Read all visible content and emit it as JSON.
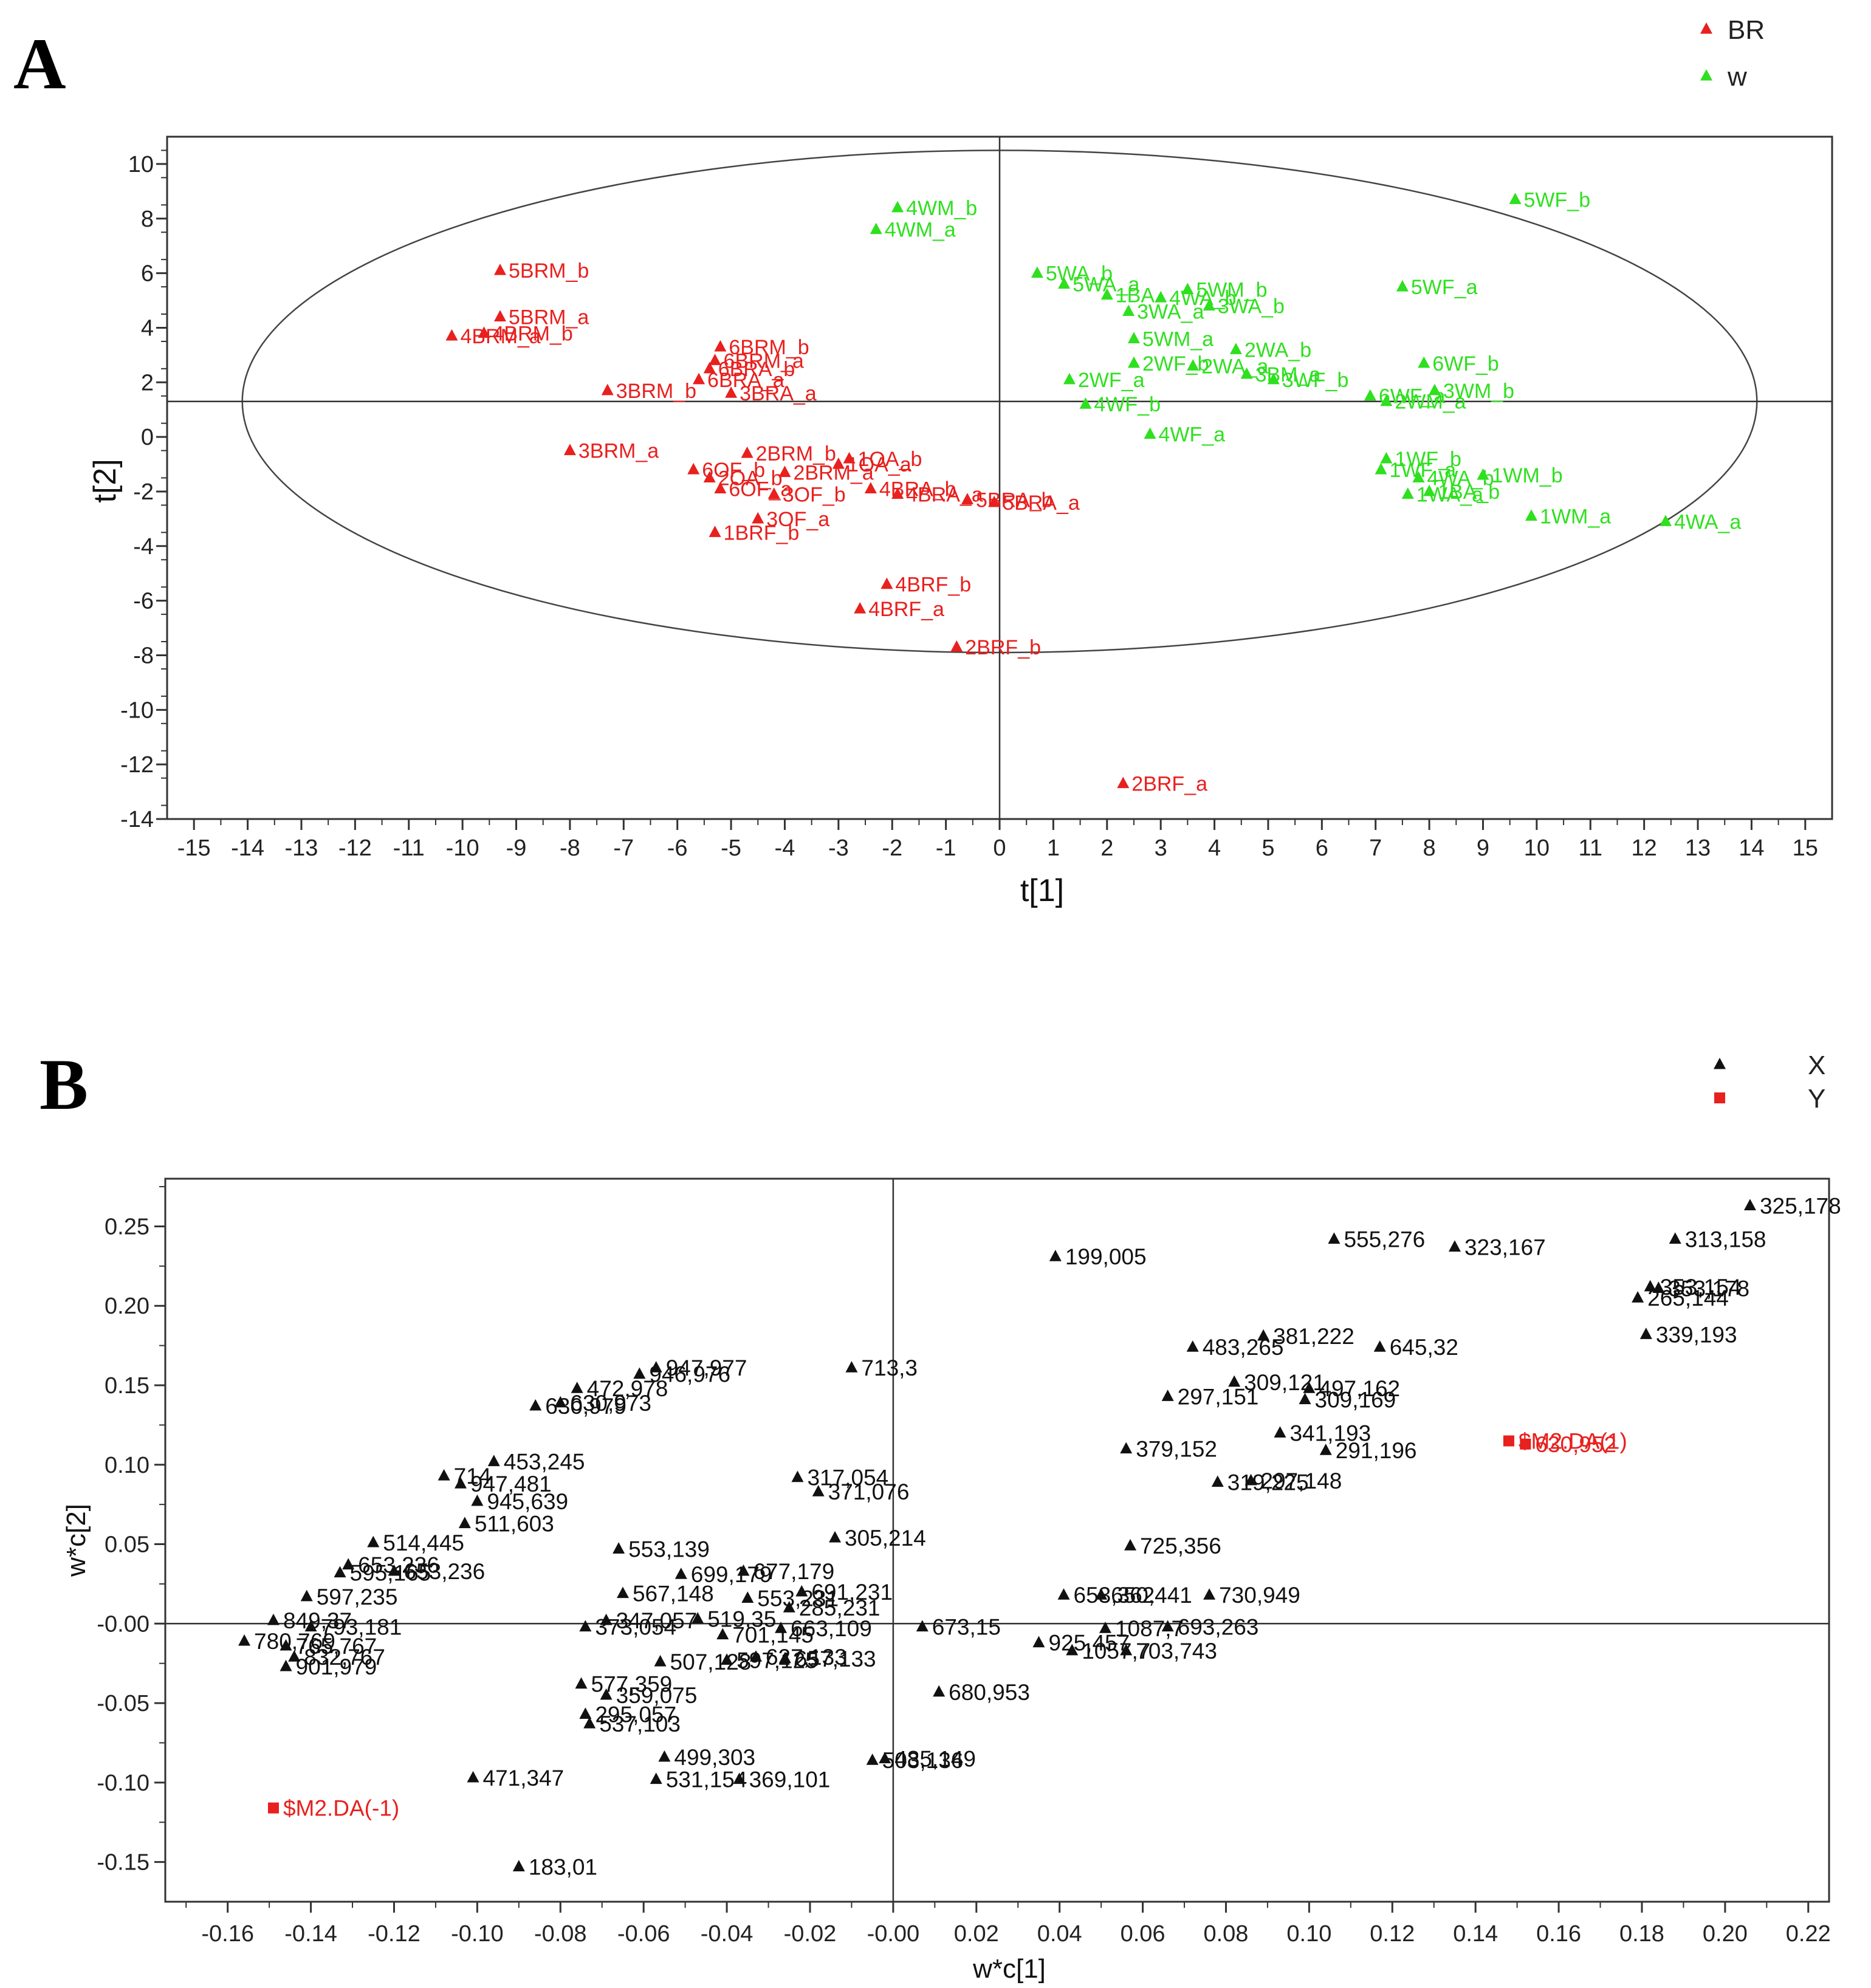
{
  "colors": {
    "br": "#e8201e",
    "w": "#2ee01e",
    "x": "#111111",
    "y": "#e8201e",
    "axis": "#333333"
  },
  "chart_data": [
    {
      "type": "scatter",
      "panel": "A",
      "xlabel": "t[1]",
      "ylabel": "t[2]",
      "xlim": [
        -15.5,
        15.5
      ],
      "ylim": [
        -14,
        11
      ],
      "xticks": [
        -15,
        -14,
        -13,
        -12,
        -11,
        -10,
        -9,
        -8,
        -7,
        -6,
        -5,
        -4,
        -3,
        -2,
        -1,
        0,
        1,
        2,
        3,
        4,
        5,
        6,
        7,
        8,
        9,
        10,
        11,
        12,
        13,
        14,
        15
      ],
      "yticks": [
        10,
        8,
        6,
        4,
        2,
        0,
        -2,
        -4,
        -6,
        -8,
        -10,
        -12,
        -14
      ],
      "ellipse": {
        "cx": 0,
        "cy": 1.3,
        "rx": 14.1,
        "ry": 9.2
      },
      "reference_lines": {
        "x": 0,
        "y": 1.3
      },
      "legend": [
        "BR",
        "w"
      ],
      "legend_position": "top-right",
      "series": [
        {
          "name": "BR",
          "color": "#e8201e",
          "points": [
            {
              "label": "5BRM_b",
              "x": -9.3,
              "y": 6.1
            },
            {
              "label": "5BRM_a",
              "x": -9.3,
              "y": 4.4
            },
            {
              "label": "4BRM_b",
              "x": -9.6,
              "y": 3.8
            },
            {
              "label": "4BRM_a",
              "x": -10.2,
              "y": 3.7
            },
            {
              "label": "3BRM_b",
              "x": -7.3,
              "y": 1.7
            },
            {
              "label": "3BRM_a",
              "x": -8.0,
              "y": -0.5
            },
            {
              "label": "6BRM_b",
              "x": -5.2,
              "y": 3.3
            },
            {
              "label": "6BRM_a",
              "x": -5.3,
              "y": 2.8
            },
            {
              "label": "6BRA_b",
              "x": -5.4,
              "y": 2.5
            },
            {
              "label": "6BRA_a",
              "x": -5.6,
              "y": 2.1
            },
            {
              "label": "3BRA_a",
              "x": -5.0,
              "y": 1.6
            },
            {
              "label": "2BRM_b",
              "x": -4.7,
              "y": -0.6
            },
            {
              "label": "2BRM_a",
              "x": -4.0,
              "y": -1.3
            },
            {
              "label": "1OA_b",
              "x": -2.8,
              "y": -0.8
            },
            {
              "label": "1OA_a",
              "x": -3.0,
              "y": -1.0
            },
            {
              "label": "6OF_b",
              "x": -5.7,
              "y": -1.2
            },
            {
              "label": "6OF_a",
              "x": -5.2,
              "y": -1.9
            },
            {
              "label": "2OA_b",
              "x": -5.4,
              "y": -1.5
            },
            {
              "label": "3OF_b",
              "x": -4.2,
              "y": -2.1
            },
            {
              "label": "3OF_a",
              "x": -4.5,
              "y": -3.0
            },
            {
              "label": "4BRA_b",
              "x": -2.4,
              "y": -1.9
            },
            {
              "label": "4BRA_a",
              "x": -1.9,
              "y": -2.1
            },
            {
              "label": "5BRA_b",
              "x": -0.6,
              "y": -2.3
            },
            {
              "label": "5BRA_a",
              "x": -0.1,
              "y": -2.4
            },
            {
              "label": "1BRF_b",
              "x": -5.3,
              "y": -3.5
            },
            {
              "label": "4BRF_b",
              "x": -2.1,
              "y": -5.4
            },
            {
              "label": "4BRF_a",
              "x": -2.6,
              "y": -6.3
            },
            {
              "label": "2BRF_b",
              "x": -0.8,
              "y": -7.7
            },
            {
              "label": "2BRF_a",
              "x": 2.3,
              "y": -12.7
            }
          ]
        },
        {
          "name": "w",
          "color": "#2ee01e",
          "points": [
            {
              "label": "4WM_b",
              "x": -1.9,
              "y": 8.4
            },
            {
              "label": "4WM_a",
              "x": -2.3,
              "y": 7.6
            },
            {
              "label": "5WF_b",
              "x": 9.6,
              "y": 8.7
            },
            {
              "label": "5WF_a",
              "x": 7.5,
              "y": 5.5
            },
            {
              "label": "5WA_b",
              "x": 0.7,
              "y": 6.0
            },
            {
              "label": "5WA_a",
              "x": 1.2,
              "y": 5.6
            },
            {
              "label": "1BA",
              "x": 2.0,
              "y": 5.2
            },
            {
              "label": "3WA_a",
              "x": 2.4,
              "y": 4.6
            },
            {
              "label": "4WA_b",
              "x": 3.0,
              "y": 5.1
            },
            {
              "label": "5WM_b",
              "x": 3.5,
              "y": 5.4
            },
            {
              "label": "5WM_a",
              "x": 2.5,
              "y": 3.6
            },
            {
              "label": "3WA_b",
              "x": 3.9,
              "y": 4.8
            },
            {
              "label": "2WA_b",
              "x": 4.4,
              "y": 3.2
            },
            {
              "label": "2WF_a",
              "x": 1.3,
              "y": 2.1
            },
            {
              "label": "2WF_b",
              "x": 2.5,
              "y": 2.7
            },
            {
              "label": "4WF_b",
              "x": 1.6,
              "y": 1.2
            },
            {
              "label": "4WF_a",
              "x": 2.8,
              "y": 0.1
            },
            {
              "label": "2WA_a",
              "x": 3.6,
              "y": 2.6
            },
            {
              "label": "3BM_a",
              "x": 4.6,
              "y": 2.3
            },
            {
              "label": "3WF_b",
              "x": 5.1,
              "y": 2.1
            },
            {
              "label": "6WF_b",
              "x": 7.9,
              "y": 2.7
            },
            {
              "label": "6WF_a",
              "x": 6.9,
              "y": 1.5
            },
            {
              "label": "3WM_b",
              "x": 8.1,
              "y": 1.7
            },
            {
              "label": "2WM_a",
              "x": 7.2,
              "y": 1.3
            },
            {
              "label": "1WF_b",
              "x": 7.2,
              "y": -0.8
            },
            {
              "label": "1WF_a",
              "x": 7.1,
              "y": -1.2
            },
            {
              "label": "4WA_b",
              "x": 7.8,
              "y": -1.5
            },
            {
              "label": "1WM_b",
              "x": 9.0,
              "y": -1.4
            },
            {
              "label": "1BA_b",
              "x": 8.0,
              "y": -2.0
            },
            {
              "label": "1WA_a",
              "x": 7.6,
              "y": -2.1
            },
            {
              "label": "1WM_a",
              "x": 9.9,
              "y": -2.9
            },
            {
              "label": "4WA_a",
              "x": 12.4,
              "y": -3.1
            }
          ]
        }
      ]
    },
    {
      "type": "scatter",
      "panel": "B",
      "xlabel": "w*c[1]",
      "ylabel": "w*c[2]",
      "xlim": [
        -0.175,
        0.225
      ],
      "ylim": [
        -0.175,
        0.28
      ],
      "xticks": [
        "-0.16",
        "-0.14",
        "-0.12",
        "-0.10",
        "-0.08",
        "-0.06",
        "-0.04",
        "-0.02",
        "-0.00",
        "0.02",
        "0.04",
        "0.06",
        "0.08",
        "0.10",
        "0.12",
        "0.14",
        "0.16",
        "0.18",
        "0.20",
        "0.22"
      ],
      "yticks": [
        "0.25",
        "0.20",
        "0.15",
        "0.10",
        "0.05",
        "-0.00",
        "-0.05",
        "-0.10",
        "-0.15"
      ],
      "reference_lines": {
        "x": 0,
        "y": 0
      },
      "legend": [
        "X",
        "Y"
      ],
      "legend_position": "top-right",
      "series": [
        {
          "name": "X",
          "color": "#111111",
          "points": [
            {
              "label": "325,178",
              "x": 0.206,
              "y": 0.263
            },
            {
              "label": "313,158",
              "x": 0.188,
              "y": 0.242
            },
            {
              "label": "353,154",
              "x": 0.182,
              "y": 0.212
            },
            {
              "label": "353,178",
              "x": 0.184,
              "y": 0.211
            },
            {
              "label": "265,144",
              "x": 0.179,
              "y": 0.205
            },
            {
              "label": "339,193",
              "x": 0.181,
              "y": 0.182
            },
            {
              "label": "555,276",
              "x": 0.106,
              "y": 0.242
            },
            {
              "label": "323,167",
              "x": 0.135,
              "y": 0.237
            },
            {
              "label": "199,005",
              "x": 0.039,
              "y": 0.231
            },
            {
              "label": "381,222",
              "x": 0.089,
              "y": 0.181
            },
            {
              "label": "483,265",
              "x": 0.072,
              "y": 0.174
            },
            {
              "label": "645,32",
              "x": 0.117,
              "y": 0.174
            },
            {
              "label": "309,121",
              "x": 0.082,
              "y": 0.152
            },
            {
              "label": "297,151",
              "x": 0.066,
              "y": 0.143
            },
            {
              "label": "497,162",
              "x": 0.1,
              "y": 0.148
            },
            {
              "label": "309,169",
              "x": 0.099,
              "y": 0.141
            },
            {
              "label": "341,193",
              "x": 0.093,
              "y": 0.12
            },
            {
              "label": "379,152",
              "x": 0.056,
              "y": 0.11
            },
            {
              "label": "291,196",
              "x": 0.104,
              "y": 0.109
            },
            {
              "label": "319,225",
              "x": 0.078,
              "y": 0.089
            },
            {
              "label": "297,148",
              "x": 0.086,
              "y": 0.09
            },
            {
              "label": "725,356",
              "x": 0.057,
              "y": 0.049
            },
            {
              "label": "653,362",
              "x": 0.041,
              "y": 0.018
            },
            {
              "label": "650,441",
              "x": 0.05,
              "y": 0.018
            },
            {
              "label": "730,949",
              "x": 0.076,
              "y": 0.018
            },
            {
              "label": "925,457",
              "x": 0.035,
              "y": -0.012
            },
            {
              "label": "1087,7",
              "x": 0.051,
              "y": -0.003
            },
            {
              "label": "1057,7",
              "x": 0.043,
              "y": -0.017
            },
            {
              "label": "693,263",
              "x": 0.066,
              "y": -0.002
            },
            {
              "label": "703,743",
              "x": 0.056,
              "y": -0.017
            },
            {
              "label": "673,15",
              "x": 0.007,
              "y": -0.002
            },
            {
              "label": "680,953",
              "x": 0.011,
              "y": -0.043
            },
            {
              "label": "713,3",
              "x": -0.01,
              "y": 0.161
            },
            {
              "label": "947,977",
              "x": -0.057,
              "y": 0.161
            },
            {
              "label": "946,976",
              "x": -0.061,
              "y": 0.157
            },
            {
              "label": "472,978",
              "x": -0.076,
              "y": 0.148
            },
            {
              "label": "630,973",
              "x": -0.08,
              "y": 0.139
            },
            {
              "label": "630,979",
              "x": -0.086,
              "y": 0.137
            },
            {
              "label": "317,054",
              "x": -0.023,
              "y": 0.092
            },
            {
              "label": "371,076",
              "x": -0.018,
              "y": 0.083
            },
            {
              "label": "305,214",
              "x": -0.014,
              "y": 0.054
            },
            {
              "label": "553,139",
              "x": -0.066,
              "y": 0.047
            },
            {
              "label": "567,148",
              "x": -0.065,
              "y": 0.019
            },
            {
              "label": "699,179",
              "x": -0.051,
              "y": 0.031
            },
            {
              "label": "677,179",
              "x": -0.036,
              "y": 0.033
            },
            {
              "label": "553,231",
              "x": -0.035,
              "y": 0.016
            },
            {
              "label": "691,231",
              "x": -0.022,
              "y": 0.02
            },
            {
              "label": "285,231",
              "x": -0.025,
              "y": 0.01
            },
            {
              "label": "519,35",
              "x": -0.047,
              "y": 0.003
            },
            {
              "label": "347,057",
              "x": -0.069,
              "y": 0.002
            },
            {
              "label": "373,054",
              "x": -0.074,
              "y": -0.002
            },
            {
              "label": "663,109",
              "x": -0.027,
              "y": -0.003
            },
            {
              "label": "701,145",
              "x": -0.041,
              "y": -0.007
            },
            {
              "label": "657,133",
              "x": -0.026,
              "y": -0.022
            },
            {
              "label": "627,133",
              "x": -0.033,
              "y": -0.021
            },
            {
              "label": "507,128",
              "x": -0.056,
              "y": -0.024
            },
            {
              "label": "597,125",
              "x": -0.04,
              "y": -0.023
            },
            {
              "label": "577,359",
              "x": -0.075,
              "y": -0.038
            },
            {
              "label": "359,075",
              "x": -0.069,
              "y": -0.045
            },
            {
              "label": "295,057",
              "x": -0.074,
              "y": -0.057
            },
            {
              "label": "537,103",
              "x": -0.073,
              "y": -0.063
            },
            {
              "label": "499,303",
              "x": -0.055,
              "y": -0.084
            },
            {
              "label": "531,154",
              "x": -0.057,
              "y": -0.098
            },
            {
              "label": "369,101",
              "x": -0.037,
              "y": -0.098
            },
            {
              "label": "485,149",
              "x": -0.002,
              "y": -0.085
            },
            {
              "label": "503,136",
              "x": -0.005,
              "y": -0.086
            },
            {
              "label": "471,347",
              "x": -0.101,
              "y": -0.097
            },
            {
              "label": "183,01",
              "x": -0.09,
              "y": -0.153
            },
            {
              "label": "453,245",
              "x": -0.096,
              "y": 0.102
            },
            {
              "label": "714",
              "x": -0.108,
              "y": 0.093
            },
            {
              "label": "947,481",
              "x": -0.104,
              "y": 0.088
            },
            {
              "label": "945,639",
              "x": -0.1,
              "y": 0.077
            },
            {
              "label": "511,603",
              "x": -0.103,
              "y": 0.063
            },
            {
              "label": "514,445",
              "x": -0.125,
              "y": 0.051
            },
            {
              "label": "653,236",
              "x": -0.12,
              "y": 0.033
            },
            {
              "label": "653,236",
              "x": -0.131,
              "y": 0.037
            },
            {
              "label": "595,165",
              "x": -0.133,
              "y": 0.032
            },
            {
              "label": "597,235",
              "x": -0.141,
              "y": 0.017
            },
            {
              "label": "849,37",
              "x": -0.149,
              "y": 0.002
            },
            {
              "label": "793,181",
              "x": -0.14,
              "y": -0.002
            },
            {
              "label": "780,769",
              "x": -0.156,
              "y": -0.011
            },
            {
              "label": "765,767",
              "x": -0.146,
              "y": -0.014
            },
            {
              "label": "832,767",
              "x": -0.144,
              "y": -0.021
            },
            {
              "label": "901,979",
              "x": -0.146,
              "y": -0.027
            }
          ]
        },
        {
          "name": "Y",
          "color": "#e8201e",
          "marker": "square",
          "points": [
            {
              "label": "$M2.DA(1)",
              "x": 0.148,
              "y": 0.115
            },
            {
              "label": "630,952",
              "x": 0.152,
              "y": 0.113
            },
            {
              "label": "$M2.DA(-1)",
              "x": -0.149,
              "y": -0.116
            }
          ]
        }
      ]
    }
  ]
}
